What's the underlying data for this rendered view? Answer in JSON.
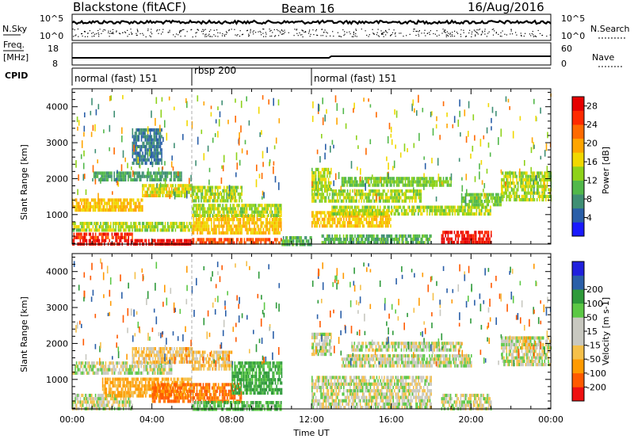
{
  "header": {
    "station": "Blackstone (fitACF)",
    "beam": "Beam 16",
    "date": "16/Aug/2016"
  },
  "top_panels": {
    "nsky_label": "N.Sky",
    "nsky_ticks": [
      "10^5",
      "10^0"
    ],
    "nsearch_label": "N.Search",
    "nsearch_ticks": [
      "10^5",
      "10^0"
    ],
    "freq_label_1": "Freq.",
    "freq_label_2": "[MHz]",
    "freq_ticks": [
      "18",
      "8"
    ],
    "nave_label": "Nave",
    "nave_ticks": [
      "60",
      "0"
    ],
    "cpid_label": "CPID",
    "cpid_segments": [
      {
        "label": "normal (fast) 151",
        "start_hour": 0,
        "end_hour": 6
      },
      {
        "label": "rbsp 200",
        "start_hour": 6,
        "end_hour": 12
      },
      {
        "label": "normal (fast) 151",
        "start_hour": 12,
        "end_hour": 24
      }
    ]
  },
  "colors": {
    "power_scale": [
      "#1a1aff",
      "#2a5fa8",
      "#3f8f74",
      "#52b84a",
      "#8ed21a",
      "#f1d800",
      "#ffa500",
      "#ff6a00",
      "#ff2a00",
      "#e60000"
    ],
    "velocity_scale": [
      "#ee1111",
      "#ff5a00",
      "#ff9a00",
      "#f5c04a",
      "#c8c8c0",
      "#c8c8c0",
      "#5cc845",
      "#2e9a3a",
      "#2a5fa8",
      "#2020dd"
    ]
  },
  "chart_data": [
    {
      "type": "heatmap",
      "panel": "power",
      "xlabel": "",
      "ylabel": "Slant Range [km]",
      "xlim": [
        0,
        24
      ],
      "ylim": [
        180,
        4500
      ],
      "yticks": [
        1000,
        2000,
        3000,
        4000
      ],
      "colorbar_label": "Power [dB]",
      "colorbar_ticks": [
        4,
        8,
        12,
        16,
        20,
        24,
        28
      ],
      "colorbar_range": [
        0,
        30
      ],
      "bands": [
        {
          "x0": 0.0,
          "x1": 6.0,
          "y0": 200,
          "y1": 320,
          "value": 28
        },
        {
          "x0": 0.0,
          "x1": 3.0,
          "y0": 320,
          "y1": 500,
          "value": 26
        },
        {
          "x0": 0.0,
          "x1": 6.0,
          "y0": 550,
          "y1": 800,
          "value": 14
        },
        {
          "x0": 0.0,
          "x1": 3.5,
          "y0": 1150,
          "y1": 1450,
          "value": 18
        },
        {
          "x0": 3.5,
          "x1": 6.0,
          "y0": 1500,
          "y1": 1850,
          "value": 16
        },
        {
          "x0": 1.0,
          "x1": 5.5,
          "y0": 2000,
          "y1": 2200,
          "value": 9
        },
        {
          "x0": 3.0,
          "x1": 4.5,
          "y0": 2400,
          "y1": 3400,
          "value": 6
        },
        {
          "x0": 6.0,
          "x1": 10.5,
          "y0": 500,
          "y1": 1000,
          "value": 18
        },
        {
          "x0": 6.0,
          "x1": 10.5,
          "y0": 1000,
          "y1": 1300,
          "value": 14
        },
        {
          "x0": 6.0,
          "x1": 8.5,
          "y0": 1350,
          "y1": 1800,
          "value": 14
        },
        {
          "x0": 6.0,
          "x1": 10.5,
          "y0": 200,
          "y1": 350,
          "value": 24
        },
        {
          "x0": 10.5,
          "x1": 12.0,
          "y0": 200,
          "y1": 400,
          "value": 10
        },
        {
          "x0": 12.0,
          "x1": 13.0,
          "y0": 1700,
          "y1": 2300,
          "value": 14
        },
        {
          "x0": 12.0,
          "x1": 16.0,
          "y0": 700,
          "y1": 1100,
          "value": 18
        },
        {
          "x0": 12.0,
          "x1": 17.5,
          "y0": 1400,
          "y1": 1700,
          "value": 14
        },
        {
          "x0": 13.5,
          "x1": 19.0,
          "y0": 1850,
          "y1": 2050,
          "value": 12
        },
        {
          "x0": 13.0,
          "x1": 21.0,
          "y0": 1050,
          "y1": 1250,
          "value": 14
        },
        {
          "x0": 18.5,
          "x1": 21.0,
          "y0": 200,
          "y1": 550,
          "value": 28
        },
        {
          "x0": 12.5,
          "x1": 18.0,
          "y0": 200,
          "y1": 450,
          "value": 10
        },
        {
          "x0": 21.5,
          "x1": 24.0,
          "y0": 1400,
          "y1": 2200,
          "value": 14
        },
        {
          "x0": 19.5,
          "x1": 21.5,
          "y0": 1300,
          "y1": 1600,
          "value": 12
        }
      ]
    },
    {
      "type": "heatmap",
      "panel": "velocity",
      "xlabel": "Time UT",
      "ylabel": "Slant Range [km]",
      "xlim": [
        0,
        24
      ],
      "ylim": [
        180,
        4500
      ],
      "xticks": [
        "00:00",
        "04:00",
        "08:00",
        "12:00",
        "16:00",
        "20:00",
        "00:00"
      ],
      "yticks": [
        1000,
        2000,
        3000,
        4000
      ],
      "colorbar_label": "Velocity [m s-1]",
      "colorbar_ticks": [
        -200,
        -100,
        -50,
        -15,
        15,
        50,
        100,
        200
      ],
      "bands": [
        {
          "x0": 0.0,
          "x1": 5.0,
          "y0": 1150,
          "y1": 1500,
          "value": 0
        },
        {
          "x0": 0.0,
          "x1": 3.0,
          "y0": 200,
          "y1": 600,
          "value": 0
        },
        {
          "x0": 1.5,
          "x1": 6.0,
          "y0": 500,
          "y1": 1050,
          "value": -60
        },
        {
          "x0": 3.0,
          "x1": 6.0,
          "y0": 1500,
          "y1": 1900,
          "value": -30
        },
        {
          "x0": 4.0,
          "x1": 8.5,
          "y0": 400,
          "y1": 900,
          "value": -110
        },
        {
          "x0": 6.0,
          "x1": 8.0,
          "y0": 1300,
          "y1": 1800,
          "value": -30
        },
        {
          "x0": 8.0,
          "x1": 10.5,
          "y0": 600,
          "y1": 1500,
          "value": 60
        },
        {
          "x0": 6.0,
          "x1": 10.5,
          "y0": 200,
          "y1": 400,
          "value": 40
        },
        {
          "x0": 12.0,
          "x1": 18.0,
          "y0": 200,
          "y1": 1100,
          "value": 0
        },
        {
          "x0": 12.0,
          "x1": 13.0,
          "y0": 1700,
          "y1": 2300,
          "value": 0
        },
        {
          "x0": 13.5,
          "x1": 20.0,
          "y0": 1350,
          "y1": 1700,
          "value": 0
        },
        {
          "x0": 14.0,
          "x1": 19.5,
          "y0": 1850,
          "y1": 2050,
          "value": 0
        },
        {
          "x0": 18.5,
          "x1": 21.0,
          "y0": 200,
          "y1": 600,
          "value": 0
        },
        {
          "x0": 21.5,
          "x1": 24.0,
          "y0": 1400,
          "y1": 2200,
          "value": 0
        },
        {
          "x0": 22.5,
          "x1": 23.0,
          "y0": 1900,
          "y1": 2200,
          "value": -30
        }
      ]
    }
  ]
}
